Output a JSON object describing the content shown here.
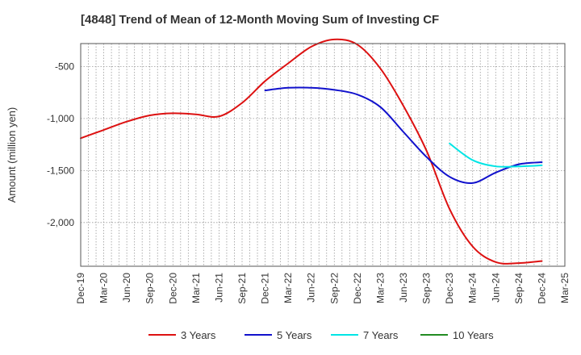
{
  "chart_data": {
    "type": "line",
    "title": "[4848]  Trend of Mean of 12-Month Moving Sum of Investing CF",
    "xlabel": "",
    "ylabel": "Amount (million yen)",
    "ylim": [
      -2420,
      -280
    ],
    "yticks": [
      -500,
      -1000,
      -1500,
      -2000
    ],
    "ytick_labels": [
      "-500",
      "-1,000",
      "-1,500",
      "-2,000"
    ],
    "categories": [
      "Dec-19",
      "Mar-20",
      "Jun-20",
      "Sep-20",
      "Dec-20",
      "Mar-21",
      "Jun-21",
      "Sep-21",
      "Dec-21",
      "Mar-22",
      "Jun-22",
      "Sep-22",
      "Dec-22",
      "Mar-23",
      "Jun-23",
      "Sep-23",
      "Dec-23",
      "Mar-24",
      "Jun-24",
      "Sep-24",
      "Dec-24",
      "Mar-25"
    ],
    "grid": true,
    "series": [
      {
        "name": "3 Years",
        "color": "#dd1111",
        "values": [
          -1190,
          -1110,
          -1030,
          -970,
          -950,
          -960,
          -980,
          -850,
          -640,
          -470,
          -310,
          -240,
          -290,
          -520,
          -880,
          -1310,
          -1870,
          -2230,
          -2380,
          -2390,
          -2370,
          null
        ]
      },
      {
        "name": "5 Years",
        "color": "#1111cc",
        "values": [
          null,
          null,
          null,
          null,
          null,
          null,
          null,
          null,
          -730,
          -705,
          -705,
          -725,
          -770,
          -890,
          -1130,
          -1370,
          -1560,
          -1620,
          -1520,
          -1440,
          -1420,
          null
        ]
      },
      {
        "name": "7 Years",
        "color": "#00e5e5",
        "values": [
          null,
          null,
          null,
          null,
          null,
          null,
          null,
          null,
          null,
          null,
          null,
          null,
          null,
          null,
          null,
          null,
          -1240,
          -1400,
          -1460,
          -1460,
          -1450,
          null
        ]
      },
      {
        "name": "10 Years",
        "color": "#228b22",
        "values": [
          null,
          null,
          null,
          null,
          null,
          null,
          null,
          null,
          null,
          null,
          null,
          null,
          null,
          null,
          null,
          null,
          null,
          null,
          null,
          null,
          null,
          null
        ]
      }
    ]
  }
}
